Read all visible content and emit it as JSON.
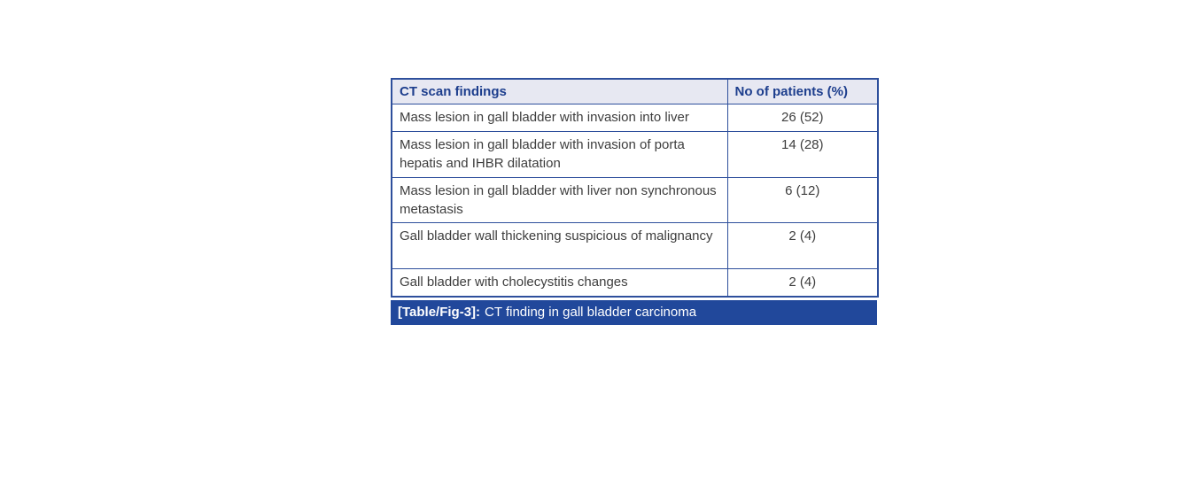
{
  "table": {
    "columns": [
      {
        "label": "CT scan findings"
      },
      {
        "label": "No of patients (%)"
      }
    ],
    "rows": [
      {
        "finding": "Mass lesion in gall bladder with invasion into liver",
        "value": "26 (52)"
      },
      {
        "finding": "Mass lesion in gall bladder with invasion of porta hepatis and IHBR dilatation",
        "value": "14 (28)"
      },
      {
        "finding": "Mass lesion in gall bladder with liver non synchronous metastasis",
        "value": "6 (12)"
      },
      {
        "finding": "Gall bladder wall thickening suspicious of malignancy",
        "value": "2 (4)"
      },
      {
        "finding": "Gall bladder with cholecystitis changes",
        "value": "2 (4)"
      }
    ],
    "caption": {
      "label": "[Table/Fig-3]:",
      "text": "CT finding in gall bladder carcinoma"
    }
  },
  "chart_data": {
    "type": "table",
    "title": "[Table/Fig-3]: CT finding in gall bladder carcinoma",
    "columns": [
      "CT scan findings",
      "No of patients (%)"
    ],
    "categories": [
      "Mass lesion in gall bladder with invasion into liver",
      "Mass lesion in gall bladder with invasion of porta hepatis and IHBR dilatation",
      "Mass lesion in gall bladder with liver non synchronous metastasis",
      "Gall bladder wall thickening suspicious of malignancy",
      "Gall bladder with cholecystitis changes"
    ],
    "values": [
      26,
      14,
      6,
      2,
      2
    ],
    "percentages": [
      52,
      28,
      12,
      4,
      4
    ]
  },
  "colors": {
    "header_bg": "#e7e8f2",
    "header_text": "#1d3e8d",
    "border": "#2e4f9c",
    "body_text": "#3d3d3d",
    "caption_bg": "#21489b",
    "caption_text": "#ffffff"
  }
}
